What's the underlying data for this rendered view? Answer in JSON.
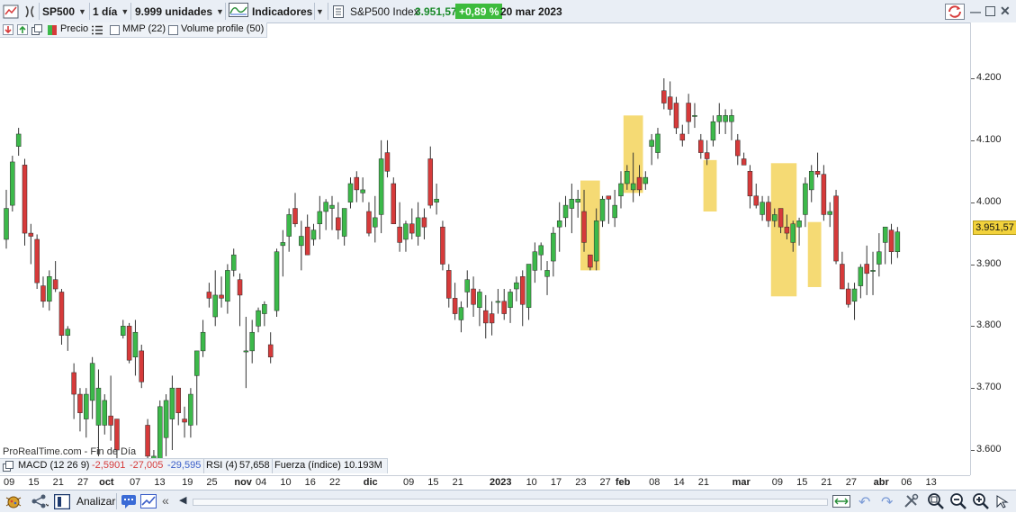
{
  "toolbar": {
    "symbol": "SP500",
    "timeframe": "1 día",
    "units": "9.999 unidades",
    "indicators_label": "Indicadores",
    "instrument_name": "S&P500 Index",
    "last_price": "3.951,57",
    "change_pct": "+0,89 %",
    "date": "20 mar 2023"
  },
  "chart_toolbar": {
    "price_label": "Precio",
    "mmp_label": "MMP (22)",
    "volume_profile_label": "Volume profile (50)"
  },
  "watermark": "ProRealTime.com - Fin de Día",
  "indicators": {
    "macd_label": "MACD (12 26 9)",
    "macd_v1": "-2,5901",
    "macd_v2": "-27,005",
    "macd_v3": "-29,595",
    "rsi_label": "RSI (4)",
    "rsi_value": "57,658",
    "fuerza_label": "Fuerza (índice)",
    "fuerza_value": "10.193M"
  },
  "bottom_bar": {
    "analyze_label": "Analizar"
  },
  "colors": {
    "up": "#3cb94a",
    "down": "#d63a3a",
    "highlight": "#f3d45c",
    "change_badge": "#3dbb3d"
  },
  "chart_data": {
    "type": "candlestick",
    "ylim": [
      3560,
      4260
    ],
    "y_ticks": [
      "4.200",
      "4.100",
      "4.000",
      "3.900",
      "3.800",
      "3.700",
      "3.600"
    ],
    "y_tick_values": [
      4200,
      4100,
      4000,
      3900,
      3800,
      3700,
      3600
    ],
    "last_price_label": "3.951,57",
    "last_price_value": 3951.57,
    "x_ticks": [
      {
        "label": "09",
        "bold": false
      },
      {
        "label": "15",
        "bold": false
      },
      {
        "label": "21",
        "bold": false
      },
      {
        "label": "27",
        "bold": false
      },
      {
        "label": "oct",
        "bold": true
      },
      {
        "label": "07",
        "bold": false
      },
      {
        "label": "13",
        "bold": false
      },
      {
        "label": "19",
        "bold": false
      },
      {
        "label": "25",
        "bold": false
      },
      {
        "label": "nov",
        "bold": true
      },
      {
        "label": "04",
        "bold": false
      },
      {
        "label": "10",
        "bold": false
      },
      {
        "label": "16",
        "bold": false
      },
      {
        "label": "22",
        "bold": false
      },
      {
        "label": "dic",
        "bold": true
      },
      {
        "label": "09",
        "bold": false
      },
      {
        "label": "15",
        "bold": false
      },
      {
        "label": "21",
        "bold": false
      },
      {
        "label": "2023",
        "bold": true
      },
      {
        "label": "10",
        "bold": false
      },
      {
        "label": "17",
        "bold": false
      },
      {
        "label": "23",
        "bold": false
      },
      {
        "label": "27",
        "bold": false
      },
      {
        "label": "feb",
        "bold": true
      },
      {
        "label": "08",
        "bold": false
      },
      {
        "label": "14",
        "bold": false
      },
      {
        "label": "21",
        "bold": false
      },
      {
        "label": "mar",
        "bold": true
      },
      {
        "label": "09",
        "bold": false
      },
      {
        "label": "15",
        "bold": false
      },
      {
        "label": "21",
        "bold": false
      },
      {
        "label": "27",
        "bold": false
      },
      {
        "label": "abr",
        "bold": true
      },
      {
        "label": "06",
        "bold": false
      },
      {
        "label": "13",
        "bold": false
      }
    ],
    "x_tick_index": [
      0.5,
      4.5,
      8.5,
      12.5,
      16.5,
      21,
      25,
      29.5,
      33.5,
      38.5,
      41.5,
      45.5,
      49.5,
      53.5,
      59.5,
      65.5,
      69.5,
      73.5,
      80.5,
      85.5,
      89.5,
      93.5,
      97.5,
      100.5,
      105.5,
      109.5,
      113.5,
      119.5,
      125.5,
      129.5,
      133.5,
      137.5,
      142.5,
      146.5,
      150.5
    ],
    "candles": [
      [
        3940,
        4020,
        3925,
        3990
      ],
      [
        3995,
        4075,
        3985,
        4065
      ],
      [
        4090,
        4120,
        4075,
        4110
      ],
      [
        4060,
        4070,
        3930,
        3950
      ],
      [
        3950,
        3965,
        3900,
        3945
      ],
      [
        3940,
        3948,
        3860,
        3870
      ],
      [
        3865,
        3880,
        3830,
        3840
      ],
      [
        3840,
        3890,
        3825,
        3880
      ],
      [
        3875,
        3905,
        3855,
        3860
      ],
      [
        3855,
        3860,
        3770,
        3785
      ],
      [
        3785,
        3800,
        3760,
        3795
      ],
      [
        3725,
        3740,
        3650,
        3690
      ],
      [
        3690,
        3700,
        3630,
        3660
      ],
      [
        3650,
        3700,
        3620,
        3690
      ],
      [
        3680,
        3750,
        3650,
        3740
      ],
      [
        3640,
        3730,
        3590,
        3700
      ],
      [
        3640,
        3690,
        3625,
        3680
      ],
      [
        3655,
        3720,
        3615,
        3640
      ],
      [
        3650,
        3650,
        3580,
        3600
      ],
      [
        3785,
        3810,
        3780,
        3800
      ],
      [
        3800,
        3805,
        3740,
        3745
      ],
      [
        3750,
        3810,
        3720,
        3790
      ],
      [
        3760,
        3770,
        3700,
        3710
      ],
      [
        3640,
        3650,
        3570,
        3590
      ],
      [
        3585,
        3600,
        3560,
        3590
      ],
      [
        3585,
        3680,
        3555,
        3670
      ],
      [
        3620,
        3690,
        3590,
        3680
      ],
      [
        3650,
        3720,
        3600,
        3700
      ],
      [
        3700,
        3700,
        3640,
        3660
      ],
      [
        3650,
        3670,
        3620,
        3645
      ],
      [
        3640,
        3700,
        3620,
        3690
      ],
      [
        3720,
        3760,
        3640,
        3760
      ],
      [
        3760,
        3810,
        3750,
        3790
      ],
      [
        3855,
        3870,
        3830,
        3845
      ],
      [
        3815,
        3890,
        3800,
        3850
      ],
      [
        3850,
        3880,
        3830,
        3845
      ],
      [
        3840,
        3900,
        3820,
        3890
      ],
      [
        3890,
        3925,
        3880,
        3915
      ],
      [
        3875,
        3885,
        3800,
        3850
      ],
      [
        3760,
        3815,
        3700,
        3760
      ],
      [
        3760,
        3810,
        3740,
        3790
      ],
      [
        3800,
        3830,
        3790,
        3825
      ],
      [
        3820,
        3840,
        3800,
        3835
      ],
      [
        3770,
        3790,
        3740,
        3750
      ],
      [
        3825,
        3925,
        3815,
        3920
      ],
      [
        3930,
        3955,
        3880,
        3935
      ],
      [
        3945,
        3990,
        3920,
        3980
      ],
      [
        3990,
        4015,
        3960,
        3965
      ],
      [
        3930,
        3970,
        3890,
        3945
      ],
      [
        3960,
        3980,
        3915,
        3915
      ],
      [
        3940,
        3965,
        3930,
        3955
      ],
      [
        3965,
        4010,
        3940,
        3985
      ],
      [
        3985,
        4005,
        3955,
        4000
      ],
      [
        3990,
        4010,
        3955,
        3995
      ],
      [
        3975,
        4000,
        3940,
        3955
      ],
      [
        3945,
        3985,
        3930,
        3990
      ],
      [
        4000,
        4040,
        3990,
        4030
      ],
      [
        4040,
        4050,
        4000,
        4020
      ],
      [
        4015,
        4040,
        4000,
        4020
      ],
      [
        3985,
        4000,
        3945,
        3950
      ],
      [
        3960,
        4010,
        3935,
        3975
      ],
      [
        3980,
        4100,
        3950,
        4070
      ],
      [
        4080,
        4100,
        4040,
        4050
      ],
      [
        4030,
        4040,
        3970,
        3965
      ],
      [
        3960,
        4000,
        3920,
        3935
      ],
      [
        3940,
        3970,
        3920,
        3965
      ],
      [
        3965,
        3990,
        3940,
        3950
      ],
      [
        3945,
        4000,
        3930,
        3975
      ],
      [
        3975,
        3990,
        3940,
        3960
      ],
      [
        4070,
        4090,
        3990,
        3995
      ],
      [
        4000,
        4030,
        3980,
        4005
      ],
      [
        3960,
        3970,
        3890,
        3900
      ],
      [
        3890,
        3900,
        3830,
        3845
      ],
      [
        3845,
        3870,
        3810,
        3820
      ],
      [
        3810,
        3840,
        3790,
        3830
      ],
      [
        3855,
        3890,
        3830,
        3875
      ],
      [
        3860,
        3880,
        3815,
        3835
      ],
      [
        3830,
        3860,
        3800,
        3855
      ],
      [
        3825,
        3850,
        3780,
        3805
      ],
      [
        3820,
        3840,
        3785,
        3805
      ],
      [
        3840,
        3860,
        3820,
        3840
      ],
      [
        3840,
        3860,
        3810,
        3820
      ],
      [
        3830,
        3860,
        3805,
        3855
      ],
      [
        3860,
        3880,
        3840,
        3870
      ],
      [
        3880,
        3890,
        3800,
        3835
      ],
      [
        3830,
        3900,
        3810,
        3900
      ],
      [
        3890,
        3935,
        3870,
        3920
      ],
      [
        3915,
        3935,
        3890,
        3930
      ],
      [
        3880,
        3905,
        3850,
        3890
      ],
      [
        3905,
        3960,
        3880,
        3950
      ],
      [
        3960,
        4000,
        3920,
        3970
      ],
      [
        3975,
        4010,
        3960,
        3995
      ],
      [
        3990,
        4030,
        3950,
        4005
      ],
      [
        4000,
        4020,
        3975,
        4005
      ],
      [
        3985,
        4020,
        3920,
        3935
      ],
      [
        3915,
        3915,
        3890,
        3895
      ],
      [
        3905,
        3990,
        3890,
        3970
      ],
      [
        3970,
        4010,
        3960,
        4005
      ],
      [
        4010,
        4010,
        3965,
        4005
      ],
      [
        3975,
        4020,
        3960,
        3995
      ],
      [
        4010,
        4050,
        3990,
        4030
      ],
      [
        4030,
        4060,
        4020,
        4050
      ],
      [
        4020,
        4080,
        4000,
        4030
      ],
      [
        4040,
        4060,
        4010,
        4020
      ],
      [
        4030,
        4050,
        4020,
        4040
      ],
      [
        4090,
        4110,
        4060,
        4100
      ],
      [
        4080,
        4120,
        4070,
        4110
      ],
      [
        4180,
        4200,
        4150,
        4160
      ],
      [
        4170,
        4195,
        4140,
        4150
      ],
      [
        4160,
        4170,
        4110,
        4120
      ],
      [
        4110,
        4125,
        4090,
        4100
      ],
      [
        4160,
        4175,
        4110,
        4130
      ],
      [
        4140,
        4160,
        4120,
        4140
      ],
      [
        4100,
        4110,
        4070,
        4080
      ],
      [
        4080,
        4100,
        4060,
        4070
      ],
      [
        4100,
        4140,
        4090,
        4130
      ],
      [
        4130,
        4160,
        4110,
        4140
      ],
      [
        4130,
        4150,
        4110,
        4140
      ],
      [
        4130,
        4150,
        4100,
        4140
      ],
      [
        4100,
        4110,
        4060,
        4075
      ],
      [
        4070,
        4080,
        4060,
        4060
      ],
      [
        4050,
        4060,
        3990,
        4010
      ],
      [
        4010,
        4030,
        3990,
        3995
      ],
      [
        3980,
        4010,
        3970,
        4000
      ],
      [
        4000,
        4010,
        3960,
        3970
      ],
      [
        3970,
        3990,
        3960,
        3980
      ],
      [
        3990,
        3990,
        3950,
        3960
      ],
      [
        3960,
        3980,
        3940,
        3950
      ],
      [
        3935,
        3970,
        3920,
        3965
      ],
      [
        3960,
        3975,
        3930,
        3970
      ],
      [
        3980,
        4040,
        3960,
        4030
      ],
      [
        4020,
        4060,
        4000,
        4050
      ],
      [
        4050,
        4080,
        4040,
        4045
      ],
      [
        4045,
        4060,
        3970,
        3980
      ],
      [
        3980,
        4000,
        3960,
        3985
      ],
      [
        4010,
        4020,
        3900,
        3905
      ],
      [
        3900,
        3920,
        3860,
        3860
      ],
      [
        3860,
        3870,
        3830,
        3835
      ],
      [
        3840,
        3870,
        3810,
        3860
      ],
      [
        3865,
        3900,
        3845,
        3895
      ],
      [
        3900,
        3930,
        3850,
        3885
      ],
      [
        3890,
        3920,
        3850,
        3890
      ],
      [
        3900,
        3950,
        3880,
        3920
      ],
      [
        3935,
        3960,
        3900,
        3960
      ],
      [
        3955,
        3965,
        3900,
        3920
      ],
      [
        3920,
        3960,
        3910,
        3952
      ]
    ],
    "highlights": [
      {
        "from": 94,
        "to": 96,
        "low": 3890,
        "high": 4035
      },
      {
        "from": 101,
        "to": 103,
        "low": 4015,
        "high": 4140
      },
      {
        "from": 114,
        "to": 115,
        "low": 3985,
        "high": 4068
      },
      {
        "from": 125,
        "to": 128,
        "low": 3848,
        "high": 4063
      },
      {
        "from": 131,
        "to": 132,
        "low": 3863,
        "high": 3968
      }
    ]
  }
}
